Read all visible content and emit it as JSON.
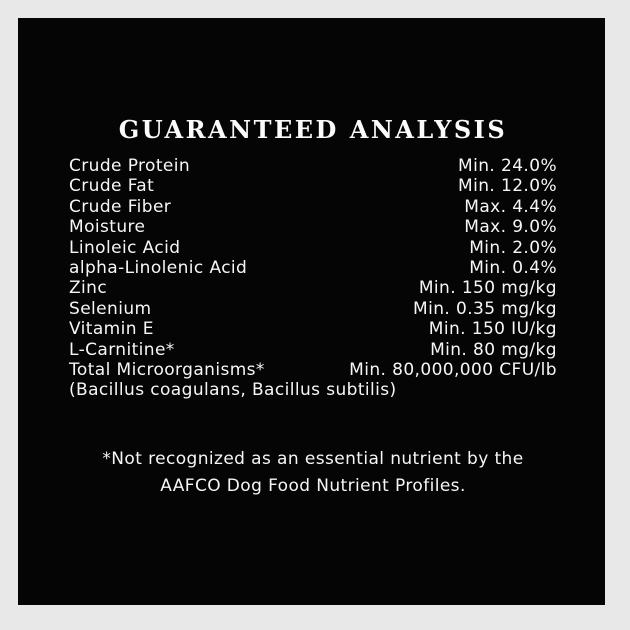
{
  "colors": {
    "page_background": "#e8e8e8",
    "panel_background": "#050505",
    "text": "#f6f6f6"
  },
  "panel": {
    "title": "GUARANTEED ANALYSIS",
    "rows": [
      {
        "name": "Crude Protein",
        "value": "Min. 24.0%"
      },
      {
        "name": "Crude Fat",
        "value": "Min. 12.0%"
      },
      {
        "name": "Crude Fiber",
        "value": "Max. 4.4%"
      },
      {
        "name": "Moisture",
        "value": "Max. 9.0%"
      },
      {
        "name": "Linoleic Acid",
        "value": "Min. 2.0%"
      },
      {
        "name": "alpha-Linolenic Acid",
        "value": "Min. 0.4%"
      },
      {
        "name": "Zinc",
        "value": "Min. 150 mg/kg"
      },
      {
        "name": "Selenium",
        "value": "Min. 0.35 mg/kg"
      },
      {
        "name": "Vitamin E",
        "value": "Min. 150 IU/kg"
      },
      {
        "name": "L-Carnitine*",
        "value": "Min. 80 mg/kg"
      },
      {
        "name": "Total Microorganisms*",
        "value": "Min. 80,000,000 CFU/lb"
      },
      {
        "name": "(Bacillus coagulans, Bacillus subtilis)",
        "value": ""
      }
    ],
    "footnote_lines": [
      "*Not recognized as an essential nutrient by the",
      "AAFCO Dog Food Nutrient Profiles."
    ]
  }
}
